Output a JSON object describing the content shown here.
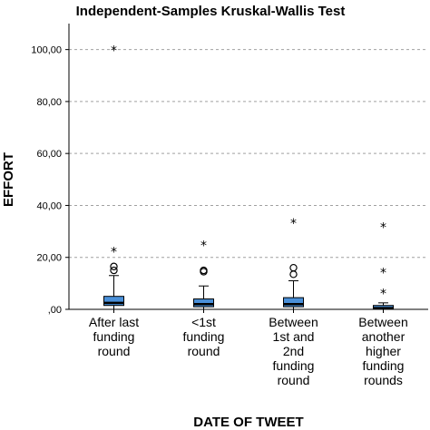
{
  "chart_data": {
    "type": "boxplot",
    "title": "Independent-Samples Kruskal-Wallis Test",
    "xlabel": "DATE OF TWEET",
    "ylabel": "EFFORT",
    "ylim": [
      0,
      110
    ],
    "yticks": [
      0,
      20,
      40,
      60,
      80,
      100
    ],
    "ytick_labels": [
      ",00",
      "20,00",
      "40,00",
      "60,00",
      "80,00",
      "100,00"
    ],
    "grid": "horizontal-dashed",
    "box_color": "#4a90d9",
    "categories": [
      {
        "label_lines": [
          "After last",
          "funding",
          "round"
        ],
        "whisker_low": 0,
        "q1": 1.5,
        "median": 2.5,
        "q3": 5,
        "whisker_high": 13,
        "outliers_circle": [
          15,
          16.5
        ],
        "outliers_star": [
          22.5,
          100
        ]
      },
      {
        "label_lines": [
          "<1st",
          "funding",
          "round"
        ],
        "whisker_low": 0,
        "q1": 1,
        "median": 2,
        "q3": 4,
        "whisker_high": 9,
        "outliers_circle": [
          14.5,
          15
        ],
        "outliers_star": [
          25
        ]
      },
      {
        "label_lines": [
          "Between",
          "1st and",
          "2nd",
          "funding",
          "round"
        ],
        "whisker_low": 0,
        "q1": 1,
        "median": 2,
        "q3": 4.5,
        "whisker_high": 11,
        "outliers_circle": [
          13.5,
          16
        ],
        "outliers_star": [
          33.5
        ]
      },
      {
        "label_lines": [
          "Between",
          "another",
          "higher",
          "funding",
          "rounds"
        ],
        "whisker_low": 0,
        "q1": 0,
        "median": 0.5,
        "q3": 1.5,
        "whisker_high": 2.5,
        "outliers_circle": [],
        "outliers_star": [
          6.5,
          14.5,
          32
        ]
      }
    ]
  }
}
